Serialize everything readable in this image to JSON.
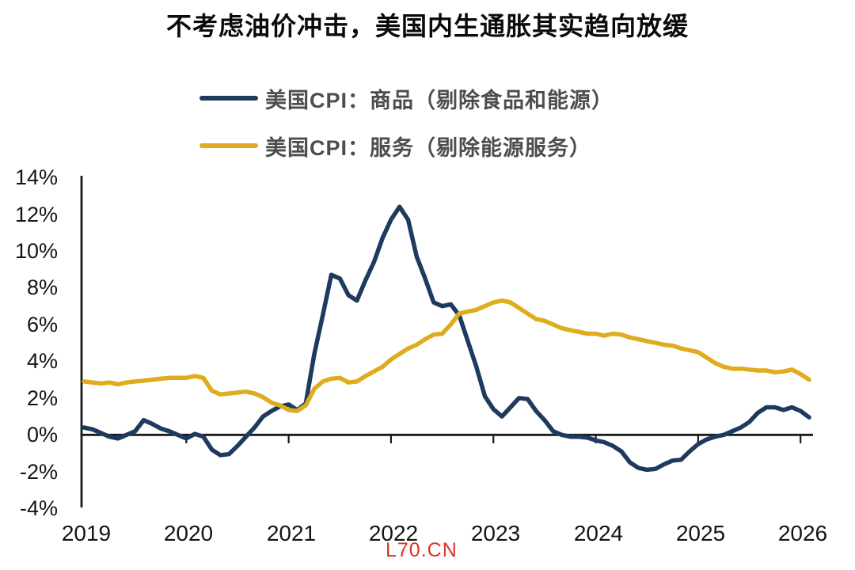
{
  "title": "不考虑油价冲击，美国内生通胀其实趋向放缓",
  "watermark": "L70.CN",
  "colors": {
    "goods_line": "#1F3A5F",
    "services_line": "#DFAC1E",
    "axis": "#1a1a1a",
    "legend_text": "#4d4d4d",
    "watermark": "#DD3326"
  },
  "legend": [
    {
      "label": "美国CPI：商品（剔除食品和能源）",
      "color": "#1F3A5F"
    },
    {
      "label": "美国CPI：服务（剔除能源服务）",
      "color": "#DFAC1E"
    }
  ],
  "chart_data": {
    "type": "line",
    "x_frequency": "monthly",
    "x_start": "2019-01",
    "x_end": "2026-02",
    "x_tick_labels": [
      "2019",
      "2020",
      "2021",
      "2022",
      "2023",
      "2024",
      "2025",
      "2026"
    ],
    "x_tick_values": [
      2019,
      2020,
      2021,
      2022,
      2023,
      2024,
      2025,
      2026
    ],
    "y_tick_labels": [
      "14%",
      "12%",
      "10%",
      "8%",
      "6%",
      "4%",
      "2%",
      "0%",
      "-2%",
      "-4%"
    ],
    "y_tick_values": [
      14,
      12,
      10,
      8,
      6,
      4,
      2,
      0,
      -2,
      -4
    ],
    "ylim": [
      -4,
      14
    ],
    "grid": false,
    "legend_position": "top-left",
    "unit": "percent YoY",
    "series": [
      {
        "name": "美国CPI：商品（剔除食品和能源）",
        "color": "#1F3A5F",
        "values": [
          0.4,
          0.3,
          0.1,
          -0.1,
          -0.2,
          0,
          0.2,
          0.8,
          0.6,
          0.35,
          0.2,
          0,
          -0.2,
          0.05,
          -0.1,
          -0.8,
          -1.1,
          -1.05,
          -0.6,
          -0.1,
          0.4,
          1,
          1.3,
          1.55,
          1.65,
          1.35,
          1.7,
          4.4,
          6.5,
          8.7,
          8.5,
          7.6,
          7.3,
          8.4,
          9.4,
          10.7,
          11.7,
          12.4,
          11.7,
          9.7,
          8.5,
          7.2,
          7,
          7.1,
          6.5,
          5.1,
          3.7,
          2.1,
          1.4,
          1,
          1.5,
          2,
          1.95,
          1.3,
          0.8,
          0.2,
          0,
          -0.1,
          -0.1,
          -0.15,
          -0.3,
          -0.4,
          -0.6,
          -0.9,
          -1.5,
          -1.8,
          -1.9,
          -1.85,
          -1.6,
          -1.4,
          -1.35,
          -0.9,
          -0.5,
          -0.25,
          -0.1,
          0,
          0.2,
          0.4,
          0.7,
          1.2,
          1.5,
          1.5,
          1.35,
          1.5,
          1.3,
          0.95
        ]
      },
      {
        "name": "美国CPI：服务（剔除能源服务）",
        "color": "#DFAC1E",
        "values": [
          2.9,
          2.85,
          2.8,
          2.85,
          2.75,
          2.85,
          2.9,
          2.95,
          3,
          3.05,
          3.1,
          3.1,
          3.1,
          3.2,
          3.1,
          2.4,
          2.2,
          2.25,
          2.3,
          2.35,
          2.25,
          2.05,
          1.75,
          1.6,
          1.35,
          1.3,
          1.6,
          2.5,
          2.9,
          3.05,
          3.1,
          2.85,
          2.9,
          3.2,
          3.45,
          3.7,
          4.1,
          4.4,
          4.7,
          4.9,
          5.2,
          5.45,
          5.5,
          6,
          6.6,
          6.7,
          6.8,
          7,
          7.2,
          7.3,
          7.2,
          6.9,
          6.6,
          6.3,
          6.2,
          6,
          5.8,
          5.7,
          5.6,
          5.5,
          5.5,
          5.4,
          5.5,
          5.45,
          5.3,
          5.2,
          5.1,
          5,
          4.9,
          4.85,
          4.7,
          4.6,
          4.5,
          4.2,
          3.9,
          3.7,
          3.6,
          3.6,
          3.55,
          3.5,
          3.5,
          3.4,
          3.45,
          3.55,
          3.3,
          3
        ]
      }
    ]
  }
}
